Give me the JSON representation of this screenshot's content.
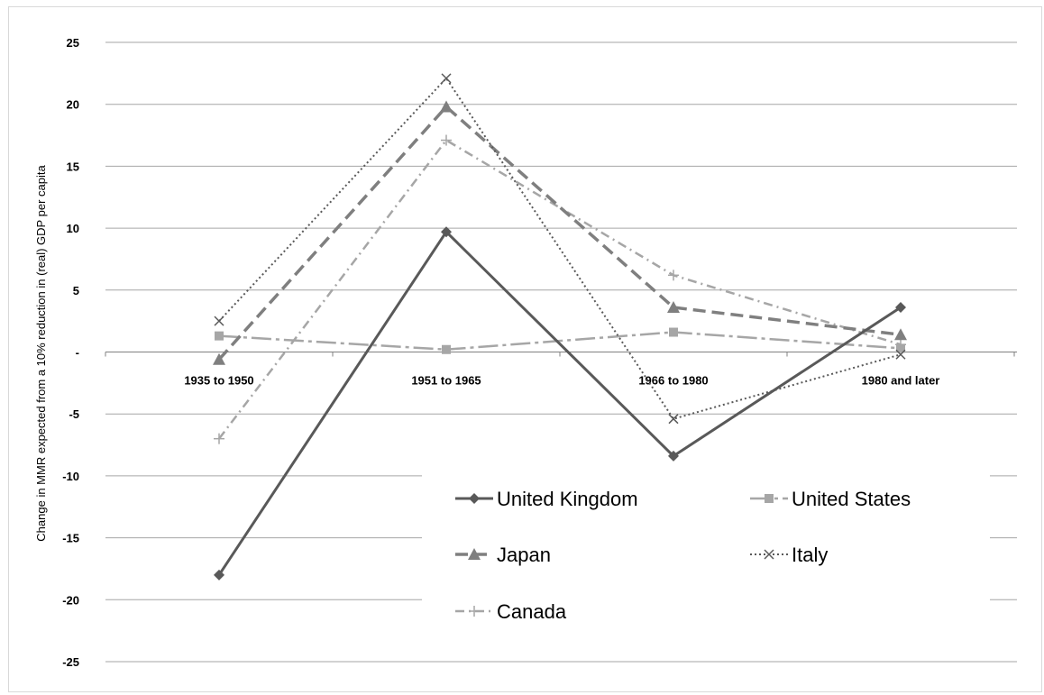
{
  "chart_data": {
    "type": "line",
    "title": "",
    "xlabel": "",
    "ylabel": "Change in MMR expected from a 10% reduction in (real) GDP per capita",
    "categories": [
      "1935 to 1950",
      "1951 to 1965",
      "1966 to 1980",
      "1980 and later"
    ],
    "ylim": [
      -25,
      25
    ],
    "yticks": [
      25,
      20,
      15,
      10,
      5,
      0,
      -5,
      -10,
      -15,
      -20,
      -25
    ],
    "ytick_labels": [
      "25",
      "20",
      "15",
      "10",
      "5",
      "-",
      "-5",
      "-10",
      "-15",
      "-20",
      "-25"
    ],
    "grid": true,
    "legend_position": "bottom-right inside plot",
    "series": [
      {
        "name": "United Kingdom",
        "values": [
          -18,
          9.7,
          -8.4,
          3.6
        ],
        "color": "#595959",
        "dash": "solid",
        "marker": "diamond"
      },
      {
        "name": "United States",
        "values": [
          1.3,
          0.2,
          1.6,
          0.3
        ],
        "color": "#a6a6a6",
        "dash": "long-dash-dot",
        "marker": "square"
      },
      {
        "name": "Japan",
        "values": [
          -0.6,
          19.8,
          3.6,
          1.4
        ],
        "color": "#7f7f7f",
        "dash": "dash",
        "marker": "triangle"
      },
      {
        "name": "Italy",
        "values": [
          2.5,
          22.1,
          -5.4,
          -0.2
        ],
        "color": "#595959",
        "dash": "dot",
        "marker": "x"
      },
      {
        "name": "Canada",
        "values": [
          -7,
          17.1,
          6.2,
          0.6
        ],
        "color": "#a6a6a6",
        "dash": "dash-dot",
        "marker": "plus"
      }
    ]
  }
}
